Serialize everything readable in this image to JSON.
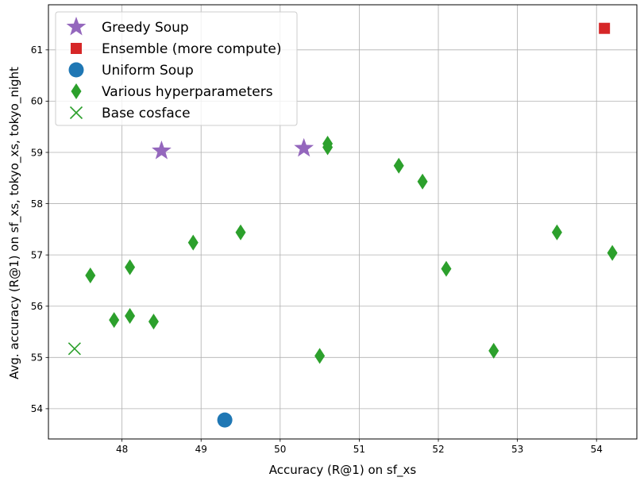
{
  "chart_data": {
    "type": "scatter",
    "xlabel": "Accuracy (R@1)  on sf_xs",
    "ylabel": "Avg. accuracy (R@1) on sf_xs, tokyo_xs, tokyo_night",
    "xlim": [
      47.07,
      54.51
    ],
    "ylim": [
      53.41,
      61.88
    ],
    "x_ticks": [
      "48",
      "49",
      "50",
      "51",
      "52",
      "53",
      "54"
    ],
    "y_ticks": [
      "54",
      "55",
      "56",
      "57",
      "58",
      "59",
      "60",
      "61"
    ],
    "grid": true,
    "legend_position": "top-left",
    "series": [
      {
        "name": "Greedy Soup",
        "marker": "star",
        "color": "#9467bd",
        "points": [
          [
            48.5,
            59.03
          ],
          [
            50.3,
            59.08
          ]
        ]
      },
      {
        "name": "Ensemble (more compute)",
        "marker": "square",
        "color": "#d62728",
        "points": [
          [
            54.1,
            61.42
          ]
        ]
      },
      {
        "name": "Uniform Soup",
        "marker": "circle",
        "color": "#1f77b4",
        "points": [
          [
            49.3,
            53.78
          ]
        ]
      },
      {
        "name": "Various hyperparameters",
        "marker": "diamond",
        "color": "#2ca02c",
        "points": [
          [
            47.6,
            56.6
          ],
          [
            47.9,
            55.73
          ],
          [
            48.1,
            56.76
          ],
          [
            48.1,
            55.81
          ],
          [
            48.4,
            55.7
          ],
          [
            48.9,
            57.24
          ],
          [
            49.5,
            57.44
          ],
          [
            50.5,
            55.03
          ],
          [
            50.6,
            59.17
          ],
          [
            50.6,
            59.1
          ],
          [
            51.5,
            58.74
          ],
          [
            51.8,
            58.43
          ],
          [
            52.1,
            56.73
          ],
          [
            52.7,
            55.13
          ],
          [
            53.5,
            57.44
          ],
          [
            54.2,
            57.04
          ]
        ]
      },
      {
        "name": "Base cosface",
        "marker": "x",
        "color": "#2ca02c",
        "points": [
          [
            47.4,
            55.17
          ]
        ]
      }
    ]
  }
}
